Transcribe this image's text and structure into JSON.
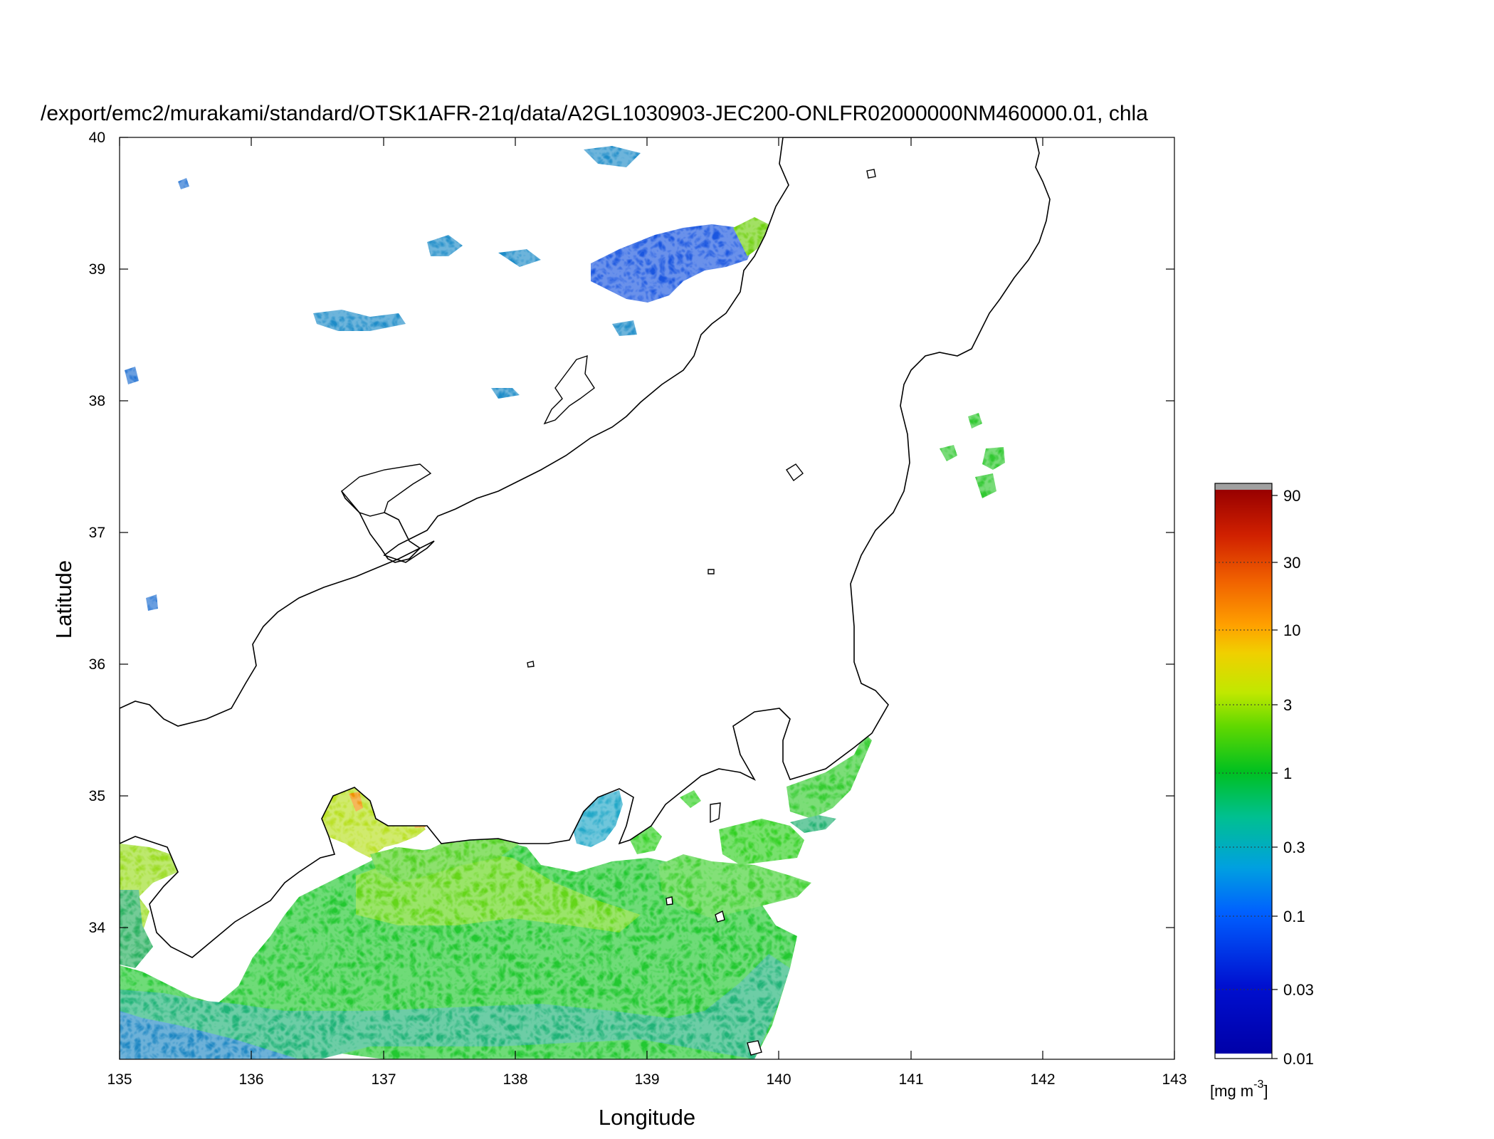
{
  "title": "/export/emc2/murakami/standard/OTSK1AFR-21q/data/A2GL1030903-JEC200-ONLFR02000000NM460000.01, chla",
  "map": {
    "xlabel": "Longitude",
    "ylabel": "Latitude",
    "lon_range": [
      135,
      143
    ],
    "lat_range": [
      33.0,
      40.0
    ],
    "lon_ticks": [
      "135",
      "136",
      "137",
      "138",
      "139",
      "140",
      "141",
      "142",
      "143"
    ],
    "lat_ticks": [
      "34",
      "35",
      "36",
      "37",
      "38",
      "39",
      "40"
    ],
    "coastline_color": "#000000",
    "land_color": "#ffffff"
  },
  "colorbar": {
    "unit_label": "[mg m",
    "unit_exponent": "-3",
    "unit_close": "]",
    "scale": "log",
    "range": [
      0.01,
      100
    ],
    "ticks": [
      "0.01",
      "0.03",
      "0.1",
      "0.3",
      "1",
      "3",
      "10",
      "30",
      "90"
    ],
    "colors": [
      "#0000b4",
      "#0040ff",
      "#00a0d0",
      "#00c040",
      "#20d000",
      "#b0e800",
      "#f0d000",
      "#ff8000",
      "#e02000",
      "#a00000",
      "#a0a0a0"
    ]
  }
}
